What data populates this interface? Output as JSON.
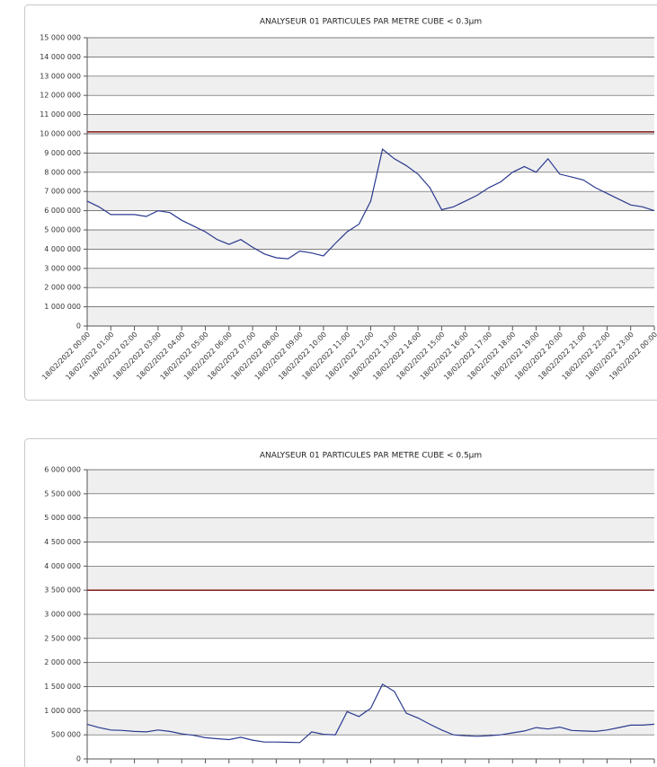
{
  "chart_data": [
    {
      "type": "line",
      "title": "ANALYSEUR 01 PARTICULES PAR METRE CUBE < 0.3µm",
      "categories": [
        "18/02/2022 00:00",
        null,
        "18/02/2022 01:00",
        null,
        "18/02/2022 02:00",
        null,
        "18/02/2022 03:00",
        null,
        "18/02/2022 04:00",
        null,
        "18/02/2022 05:00",
        null,
        "18/02/2022 06:00",
        null,
        "18/02/2022 07:00",
        null,
        "18/02/2022 08:00",
        null,
        "18/02/2022 09:00",
        null,
        "18/02/2022 10:00",
        null,
        "18/02/2022 11:00",
        null,
        "18/02/2022 12:00",
        null,
        "18/02/2022 13:00",
        null,
        "18/02/2022 14:00",
        null,
        "18/02/2022 15:00",
        null,
        "18/02/2022 16:00",
        null,
        "18/02/2022 17:00",
        null,
        "18/02/2022 18:00",
        null,
        "18/02/2022 19:00",
        null,
        "18/02/2022 20:00",
        null,
        "18/02/2022 21:00",
        null,
        "18/02/2022 22:00",
        null,
        "18/02/2022 23:00",
        null,
        "19/02/2022 00:00"
      ],
      "values": [
        6500000,
        6200000,
        5800000,
        5800000,
        5800000,
        5700000,
        6000000,
        5900000,
        5500000,
        5200000,
        4900000,
        4500000,
        4250000,
        4500000,
        4100000,
        3750000,
        3550000,
        3500000,
        3900000,
        3800000,
        3650000,
        4300000,
        4900000,
        5300000,
        6500000,
        9200000,
        8700000,
        8350000,
        7900000,
        7200000,
        6050000,
        6200000,
        6500000,
        6800000,
        7200000,
        7500000,
        8000000,
        8300000,
        8000000,
        8700000,
        7900000,
        7750000,
        7600000,
        7200000,
        6900000,
        6600000,
        6300000,
        6200000,
        6000000
      ],
      "color": "#2b3a8f",
      "threshold": 10100000,
      "threshold_color": "#8b2a2a",
      "ylim": [
        0,
        15000000
      ],
      "yticks": [
        0,
        {
          "value": 1000000,
          "label": "1 000 000"
        },
        {
          "value": 2000000,
          "label": "2 000 000"
        },
        {
          "value": 3000000,
          "label": "3 000 000"
        },
        {
          "value": 4000000,
          "label": "4 000 000"
        },
        {
          "value": 5000000,
          "label": "5 000 000"
        },
        {
          "value": 6000000,
          "label": "6 000 000"
        },
        {
          "value": 7000000,
          "label": "7 000 000"
        },
        {
          "value": 8000000,
          "label": "8 000 000"
        },
        {
          "value": 9000000,
          "label": "9 000 000"
        },
        {
          "value": 10000000,
          "label": "10 000 000"
        },
        {
          "value": 11000000,
          "label": "11 000 000"
        },
        {
          "value": 12000000,
          "label": "12 000 000"
        },
        {
          "value": 13000000,
          "label": "13 000 000"
        },
        {
          "value": 14000000,
          "label": "14 000 000"
        },
        {
          "value": 15000000,
          "label": "15 000 000"
        }
      ],
      "grid": true
    },
    {
      "type": "line",
      "title": "ANALYSEUR 01 PARTICULES PAR METRE CUBE < 0.5µm",
      "values": [
        720000,
        650000,
        600000,
        590000,
        570000,
        560000,
        600000,
        570000,
        520000,
        490000,
        440000,
        420000,
        400000,
        450000,
        390000,
        350000,
        350000,
        345000,
        340000,
        560000,
        510000,
        500000,
        980000,
        880000,
        1050000,
        1550000,
        1400000,
        950000,
        850000,
        720000,
        600000,
        500000,
        480000,
        470000,
        480000,
        500000,
        540000,
        580000,
        650000,
        620000,
        660000,
        590000,
        580000,
        570000,
        600000,
        650000,
        700000,
        700000,
        720000
      ],
      "color": "#2b3a8f",
      "threshold": 3500000,
      "threshold_color": "#8b2a2a",
      "ylim": [
        0,
        6000000
      ],
      "yticks": [
        0,
        {
          "value": 500000,
          "label": "500 000"
        },
        {
          "value": 1000000,
          "label": "1 000 000"
        },
        {
          "value": 1500000,
          "label": "1 500 000"
        },
        {
          "value": 2000000,
          "label": "2 000 000"
        },
        {
          "value": 2500000,
          "label": "2 500 000"
        },
        {
          "value": 3000000,
          "label": "3 000 000"
        },
        {
          "value": 3500000,
          "label": "3 500 000"
        },
        {
          "value": 4000000,
          "label": "4 000 000"
        },
        {
          "value": 4500000,
          "label": "4 500 000"
        },
        {
          "value": 5000000,
          "label": "5 000 000"
        },
        {
          "value": 5500000,
          "label": "5 500 000"
        },
        {
          "value": 6000000,
          "label": "6 000 000"
        }
      ],
      "grid": true
    }
  ]
}
